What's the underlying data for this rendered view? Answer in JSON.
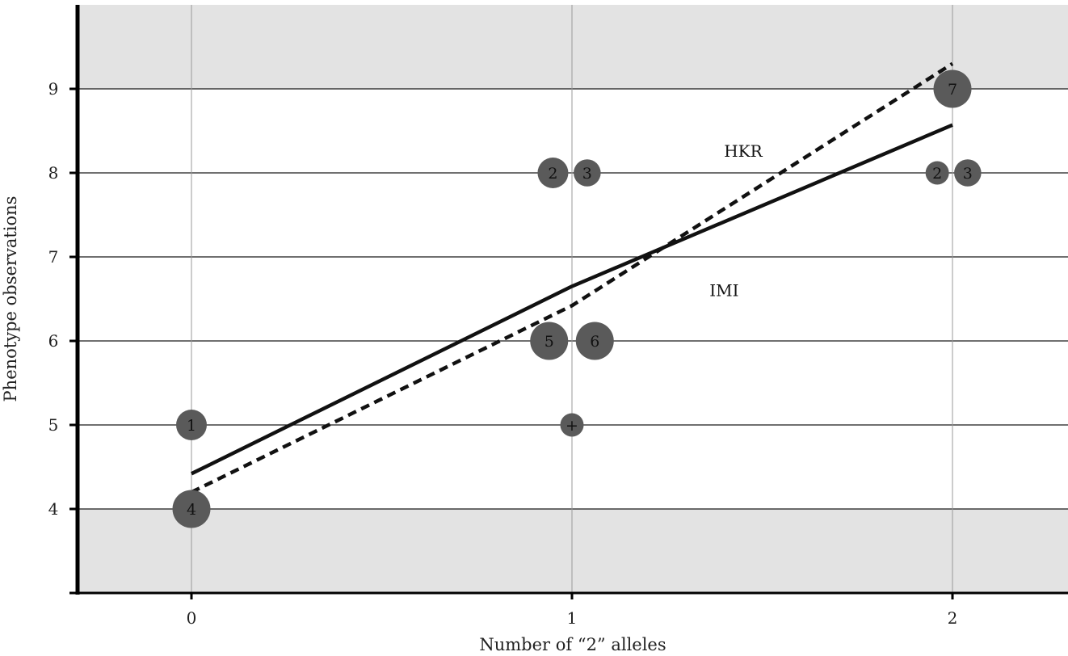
{
  "chart_data": {
    "type": "scatter",
    "xlabel": "Number of “2” alleles",
    "ylabel": "Phenotype observations",
    "xlim": [
      -0.3,
      2.3
    ],
    "ylim": [
      3,
      10
    ],
    "x_ticks": [
      "0",
      "1",
      "2"
    ],
    "y_ticks": [
      "4",
      "5",
      "6",
      "7",
      "8",
      "9"
    ],
    "grid": true,
    "shaded_bands": [
      [
        3,
        4
      ],
      [
        9,
        10
      ]
    ],
    "colors": {
      "band": "#e3e3e3",
      "points": "#5a5a5a",
      "lines": "#111111"
    },
    "points": [
      {
        "x": 0,
        "y": 5,
        "label": "1",
        "size": 2
      },
      {
        "x": 0,
        "y": 4,
        "label": "4",
        "size": 3
      },
      {
        "x": 0.95,
        "y": 8,
        "label": "2",
        "size": 2
      },
      {
        "x": 1.04,
        "y": 8,
        "label": "3",
        "size": 1.5
      },
      {
        "x": 0.94,
        "y": 6,
        "label": "5",
        "size": 3
      },
      {
        "x": 1.06,
        "y": 6,
        "label": "6",
        "size": 3
      },
      {
        "x": 1,
        "y": 5,
        "label": "+",
        "size": 1
      },
      {
        "x": 2,
        "y": 9,
        "label": "7",
        "size": 3
      },
      {
        "x": 1.96,
        "y": 8,
        "label": "2",
        "size": 1
      },
      {
        "x": 2.04,
        "y": 8,
        "label": "3",
        "size": 1.5
      }
    ],
    "series": [
      {
        "name": "HKR",
        "style": "solid",
        "x": [
          0,
          1,
          2
        ],
        "y": [
          4.42,
          6.65,
          8.57
        ]
      },
      {
        "name": "IMI",
        "style": "dashed",
        "x": [
          0,
          1,
          2
        ],
        "y": [
          4.2,
          6.42,
          9.3
        ]
      }
    ],
    "annotations": [
      {
        "text": "HKR",
        "x": 1.45,
        "y": 8.26
      },
      {
        "text": "IMI",
        "x": 1.4,
        "y": 6.6
      }
    ]
  }
}
